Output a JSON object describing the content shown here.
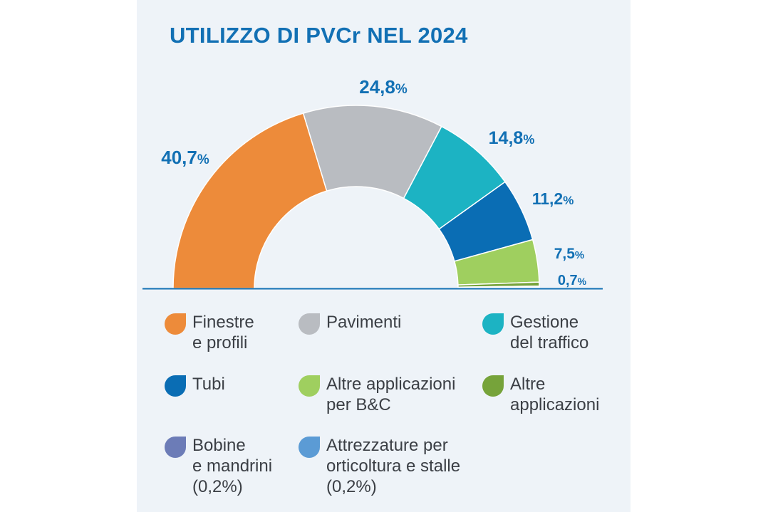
{
  "title": "UTILIZZO DI PVCr NEL 2024",
  "chart_data": {
    "type": "pie",
    "subtype": "half-donut",
    "title": "UTILIZZO DI PVCr NEL 2024",
    "series": [
      {
        "name": "Finestre e profili",
        "value": 40.7,
        "label": "40,7",
        "color": "#ed8b3a"
      },
      {
        "name": "Pavimenti",
        "value": 24.8,
        "label": "24,8",
        "color": "#b9bcc1"
      },
      {
        "name": "Gestione del traffico",
        "value": 14.8,
        "label": "14,8",
        "color": "#1cb3c3"
      },
      {
        "name": "Tubi",
        "value": 11.2,
        "label": "11,2",
        "color": "#0a6db4"
      },
      {
        "name": "Altre applicazioni per B&C",
        "value": 7.5,
        "label": "7,5",
        "color": "#9fcf5f"
      },
      {
        "name": "Altre applicazioni",
        "value": 0.7,
        "label": "0,7",
        "color": "#76a33a"
      },
      {
        "name": "Bobine e mandrini",
        "value": 0.2,
        "label": "",
        "color": "#6c7cb7"
      },
      {
        "name": "Attrezzature per orticoltura e stalle",
        "value": 0.2,
        "label": "",
        "color": "#5b9bd5"
      }
    ],
    "unit": "%",
    "legend_position": "bottom"
  },
  "legend": [
    {
      "text": "Finestre\ne profili",
      "color": "#ed8b3a"
    },
    {
      "text": "Pavimenti",
      "color": "#b9bcc1"
    },
    {
      "text": "Gestione\ndel traffico",
      "color": "#1cb3c3"
    },
    {
      "text": "Tubi",
      "color": "#0a6db4"
    },
    {
      "text": "Altre applicazioni\nper B&C",
      "color": "#9fcf5f"
    },
    {
      "text": "Altre\napplicazioni",
      "color": "#76a33a"
    },
    {
      "text": "Bobine\ne mandrini\n(0,2%)",
      "color": "#6c7cb7"
    },
    {
      "text": "Attrezzature per\norticoltura e stalle\n(0,2%)",
      "color": "#5b9bd5"
    }
  ]
}
